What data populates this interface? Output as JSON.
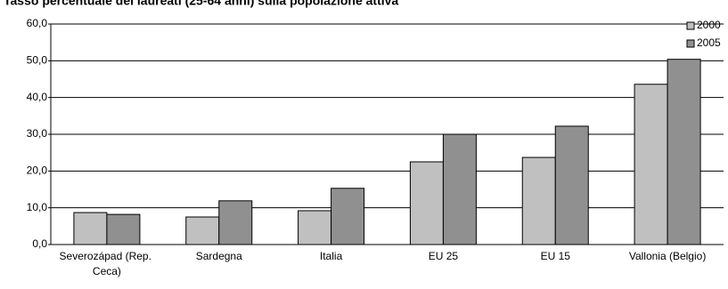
{
  "chart_data": {
    "type": "bar",
    "title": "Tasso percentuale dei laureati (25-64 anni) sulla popolazione attiva",
    "categories": [
      "Severozápad (Rep. Ceca)",
      "Sardegna",
      "Italia",
      "EU 25",
      "EU 15",
      "Vallonia (Belgio)"
    ],
    "series": [
      {
        "name": "2000",
        "color": "#c0c0c0",
        "values": [
          8.7,
          7.5,
          9.2,
          22.5,
          23.7,
          43.6
        ]
      },
      {
        "name": "2005",
        "color": "#909090",
        "values": [
          8.2,
          11.9,
          15.3,
          30.0,
          32.2,
          50.4
        ]
      }
    ],
    "ylim": [
      0,
      60
    ],
    "yticks": [
      {
        "value": 0,
        "label": "0,0"
      },
      {
        "value": 10,
        "label": "10,0"
      },
      {
        "value": 20,
        "label": "20,0"
      },
      {
        "value": 30,
        "label": "30,0"
      },
      {
        "value": 40,
        "label": "40,0"
      },
      {
        "value": 50,
        "label": "50,0"
      },
      {
        "value": 60,
        "label": "60,0"
      }
    ],
    "grid": true,
    "legend": "top-right"
  }
}
